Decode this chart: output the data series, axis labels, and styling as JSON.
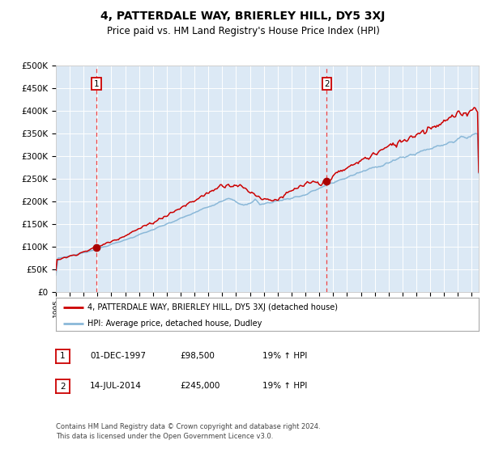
{
  "title": "4, PATTERDALE WAY, BRIERLEY HILL, DY5 3XJ",
  "subtitle": "Price paid vs. HM Land Registry's House Price Index (HPI)",
  "bg_color": "#dce9f5",
  "red_line_color": "#cc0000",
  "blue_line_color": "#8ab8d8",
  "sale1_date": 1997.92,
  "sale1_price": 98500,
  "sale2_date": 2014.54,
  "sale2_price": 245000,
  "vline_color": "#ee4444",
  "marker_color": "#aa0000",
  "ylim": [
    0,
    500000
  ],
  "ytick_labels": [
    "£0",
    "£50K",
    "£100K",
    "£150K",
    "£200K",
    "£250K",
    "£300K",
    "£350K",
    "£400K",
    "£450K",
    "£500K"
  ],
  "ytick_values": [
    0,
    50000,
    100000,
    150000,
    200000,
    250000,
    300000,
    350000,
    400000,
    450000,
    500000
  ],
  "legend1_label": "4, PATTERDALE WAY, BRIERLEY HILL, DY5 3XJ (detached house)",
  "legend2_label": "HPI: Average price, detached house, Dudley",
  "table_row1": [
    "1",
    "01-DEC-1997",
    "£98,500",
    "19% ↑ HPI"
  ],
  "table_row2": [
    "2",
    "14-JUL-2014",
    "£245,000",
    "19% ↑ HPI"
  ],
  "footnote1": "Contains HM Land Registry data © Crown copyright and database right 2024.",
  "footnote2": "This data is licensed under the Open Government Licence v3.0.",
  "grid_color": "#ffffff",
  "title_fontsize": 10,
  "subtitle_fontsize": 8.5,
  "xlim_start": 1995.0,
  "xlim_end": 2025.5
}
